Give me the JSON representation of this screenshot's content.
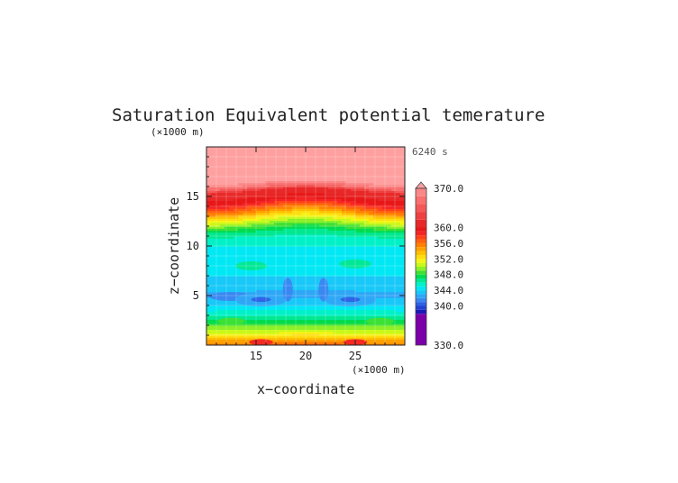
{
  "chart_data": {
    "type": "heatmap",
    "subtype": "filled-contour",
    "title": "Saturation Equivalent potential temerature",
    "time_label": "6240 s",
    "xlabel": "x−coordinate",
    "ylabel": "z−coordinate",
    "x_unit": "(×1000 m)",
    "y_unit": "(×1000 m)",
    "xlim": [
      10,
      30
    ],
    "ylim": [
      0,
      20
    ],
    "x_ticks": [
      15,
      20,
      25
    ],
    "y_ticks": [
      5,
      10,
      15
    ],
    "x_tick_labels": [
      "15",
      "20",
      "25"
    ],
    "y_tick_labels": [
      "5",
      "10",
      "15"
    ],
    "colorbar": {
      "min": 330,
      "max": 370,
      "labels": [
        "370.0",
        "360.0",
        "356.0",
        "352.0",
        "348.0",
        "344.0",
        "340.0",
        "330.0"
      ],
      "bands": [
        {
          "from": 330,
          "to": 338,
          "color": "#7a00a8"
        },
        {
          "from": 338,
          "to": 339,
          "color": "#1a1ab8"
        },
        {
          "from": 339,
          "to": 340,
          "color": "#2440d0"
        },
        {
          "from": 340,
          "to": 341,
          "color": "#2e60e4"
        },
        {
          "from": 341,
          "to": 342,
          "color": "#3a86f0"
        },
        {
          "from": 342,
          "to": 343,
          "color": "#2fa6f6"
        },
        {
          "from": 343,
          "to": 344,
          "color": "#18c8f8"
        },
        {
          "from": 344,
          "to": 345,
          "color": "#00e8f4"
        },
        {
          "from": 345,
          "to": 346,
          "color": "#00f0c8"
        },
        {
          "from": 346,
          "to": 347,
          "color": "#00e890"
        },
        {
          "from": 347,
          "to": 348,
          "color": "#00dc50"
        },
        {
          "from": 348,
          "to": 349,
          "color": "#3ee034"
        },
        {
          "from": 349,
          "to": 350,
          "color": "#8cf028"
        },
        {
          "from": 350,
          "to": 351,
          "color": "#c8f81c"
        },
        {
          "from": 351,
          "to": 352,
          "color": "#f4f414"
        },
        {
          "from": 352,
          "to": 353,
          "color": "#ffdc10"
        },
        {
          "from": 353,
          "to": 354,
          "color": "#ffc000"
        },
        {
          "from": 354,
          "to": 355,
          "color": "#ffa000"
        },
        {
          "from": 355,
          "to": 356,
          "color": "#ff8000"
        },
        {
          "from": 356,
          "to": 357,
          "color": "#ff6010"
        },
        {
          "from": 357,
          "to": 358,
          "color": "#ff4018"
        },
        {
          "from": 358,
          "to": 359,
          "color": "#f42424"
        },
        {
          "from": 359,
          "to": 360,
          "color": "#e81818"
        },
        {
          "from": 360,
          "to": 362,
          "color": "#e82828"
        },
        {
          "from": 362,
          "to": 364,
          "color": "#ee4040"
        },
        {
          "from": 364,
          "to": 366,
          "color": "#f45858"
        },
        {
          "from": 366,
          "to": 368,
          "color": "#f87070"
        },
        {
          "from": 368,
          "to": 370,
          "color": "#fb8888"
        }
      ],
      "over_color": "#ffa0a0"
    },
    "profile": {
      "z": [
        0.0,
        0.5,
        1.0,
        1.5,
        2.0,
        2.5,
        3.0,
        3.5,
        4.0,
        4.5,
        5.0,
        5.5,
        6.0,
        7.0,
        8.0,
        9.0,
        10.0,
        11.0,
        11.5,
        12.0,
        12.5,
        13.0,
        13.5,
        14.0,
        14.5,
        15.0,
        15.5,
        16.0,
        16.5,
        20.0
      ],
      "value": [
        356,
        354,
        352,
        350,
        349,
        347,
        346,
        345,
        344,
        343.5,
        342.5,
        343,
        343.5,
        344,
        344,
        344.5,
        345,
        346,
        347,
        348.5,
        350.5,
        352.5,
        355,
        357,
        359,
        360,
        360,
        366,
        370.5,
        370.5
      ]
    }
  }
}
